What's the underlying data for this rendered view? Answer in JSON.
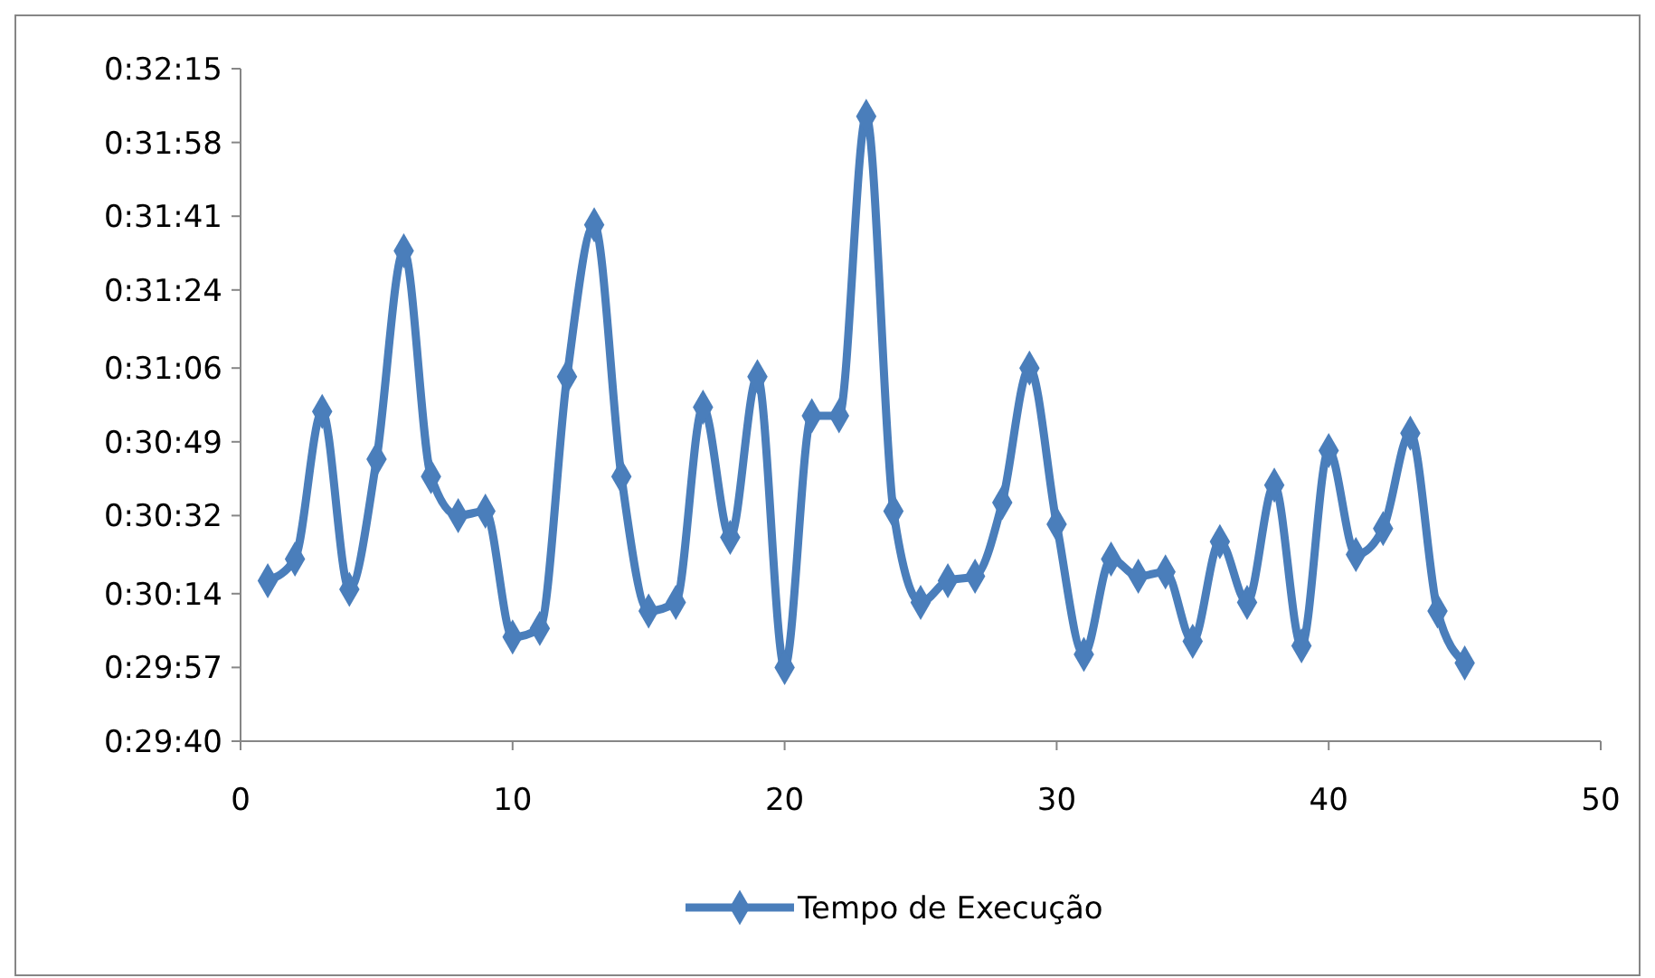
{
  "chart_data": {
    "type": "line",
    "x": [
      1,
      2,
      3,
      4,
      5,
      6,
      7,
      8,
      9,
      10,
      11,
      12,
      13,
      14,
      15,
      16,
      17,
      18,
      19,
      20,
      21,
      22,
      23,
      24,
      25,
      26,
      27,
      28,
      29,
      30,
      31,
      32,
      33,
      34,
      35,
      36,
      37,
      38,
      39,
      40,
      41,
      42,
      43,
      44,
      45
    ],
    "series": [
      {
        "name": "Tempo de Execução",
        "color": "#4a7ebb",
        "values": [
          1817,
          1822,
          1856,
          1815,
          1845,
          1893,
          1841,
          1832,
          1833,
          1804,
          1806,
          1864,
          1899,
          1841,
          1810,
          1812,
          1857,
          1827,
          1864,
          1797,
          1855,
          1855,
          1924,
          1833,
          1812,
          1817,
          1818,
          1835,
          1866,
          1830,
          1800,
          1822,
          1818,
          1819,
          1803,
          1826,
          1812,
          1839,
          1802,
          1847,
          1823,
          1829,
          1851,
          1810,
          1798
        ]
      }
    ],
    "xlim": [
      0,
      50
    ],
    "xticks": [
      0,
      10,
      20,
      30,
      40,
      50
    ],
    "ylim": [
      1780,
      1935
    ],
    "yticks": [
      {
        "value": 1780,
        "label": "0:29:40"
      },
      {
        "value": 1797,
        "label": "0:29:57"
      },
      {
        "value": 1814,
        "label": "0:30:14"
      },
      {
        "value": 1832,
        "label": "0:30:32"
      },
      {
        "value": 1849,
        "label": "0:30:49"
      },
      {
        "value": 1866,
        "label": "0:31:06"
      },
      {
        "value": 1884,
        "label": "0:31:24"
      },
      {
        "value": 1901,
        "label": "0:31:41"
      },
      {
        "value": 1918,
        "label": "0:31:58"
      },
      {
        "value": 1935,
        "label": "0:32:15"
      }
    ],
    "grid": false,
    "legend": "bottom",
    "marker": "diamond",
    "line_style": "solid"
  }
}
